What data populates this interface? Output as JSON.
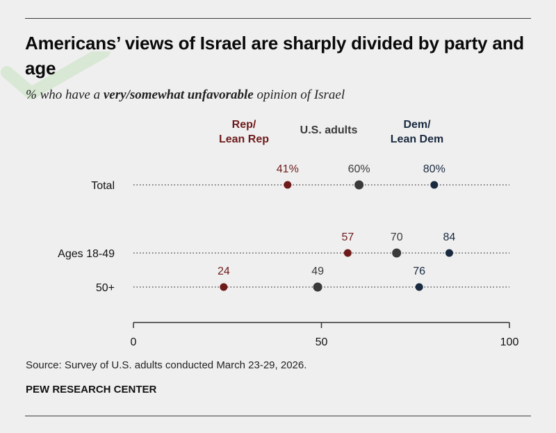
{
  "header": {
    "title": "Americans’ views of Israel are sharply divided by party and age",
    "subtitle_prefix": "% who have a ",
    "subtitle_emphasis": "very/somewhat unfavorable",
    "subtitle_suffix": " opinion of Israel"
  },
  "footer": {
    "source": "Source: Survey of U.S. adults conducted March 23-29, 2026.",
    "organization": "PEW RESEARCH CENTER"
  },
  "colors": {
    "rep": "#6e1a1a",
    "all": "#3a3a3a",
    "dem": "#1a2a40",
    "dotted": "#555555"
  },
  "chart_data": {
    "type": "dot_plot",
    "title": "Americans’ views of Israel are sharply divided by party and age",
    "xlim": [
      0,
      100
    ],
    "xticks": [
      0,
      50,
      100
    ],
    "xtick_labels": [
      "0",
      "50",
      "100"
    ],
    "legend": [
      {
        "key": "rep",
        "lines": [
          "Rep/",
          "Lean Rep"
        ]
      },
      {
        "key": "all",
        "lines": [
          "U.S. adults"
        ]
      },
      {
        "key": "dem",
        "lines": [
          "Dem/",
          "Lean Dem"
        ]
      }
    ],
    "categories": [
      "Total",
      "Ages 18-49",
      "50+"
    ],
    "series": [
      {
        "name": "Rep/Lean Rep",
        "key": "rep",
        "values": [
          41,
          57,
          24
        ],
        "labels": [
          "41%",
          "57",
          "24"
        ]
      },
      {
        "name": "U.S. adults",
        "key": "all",
        "values": [
          60,
          70,
          49
        ],
        "labels": [
          "60%",
          "70",
          "49"
        ]
      },
      {
        "name": "Dem/Lean Dem",
        "key": "dem",
        "values": [
          80,
          84,
          76
        ],
        "labels": [
          "80%",
          "84",
          "76"
        ]
      }
    ]
  }
}
